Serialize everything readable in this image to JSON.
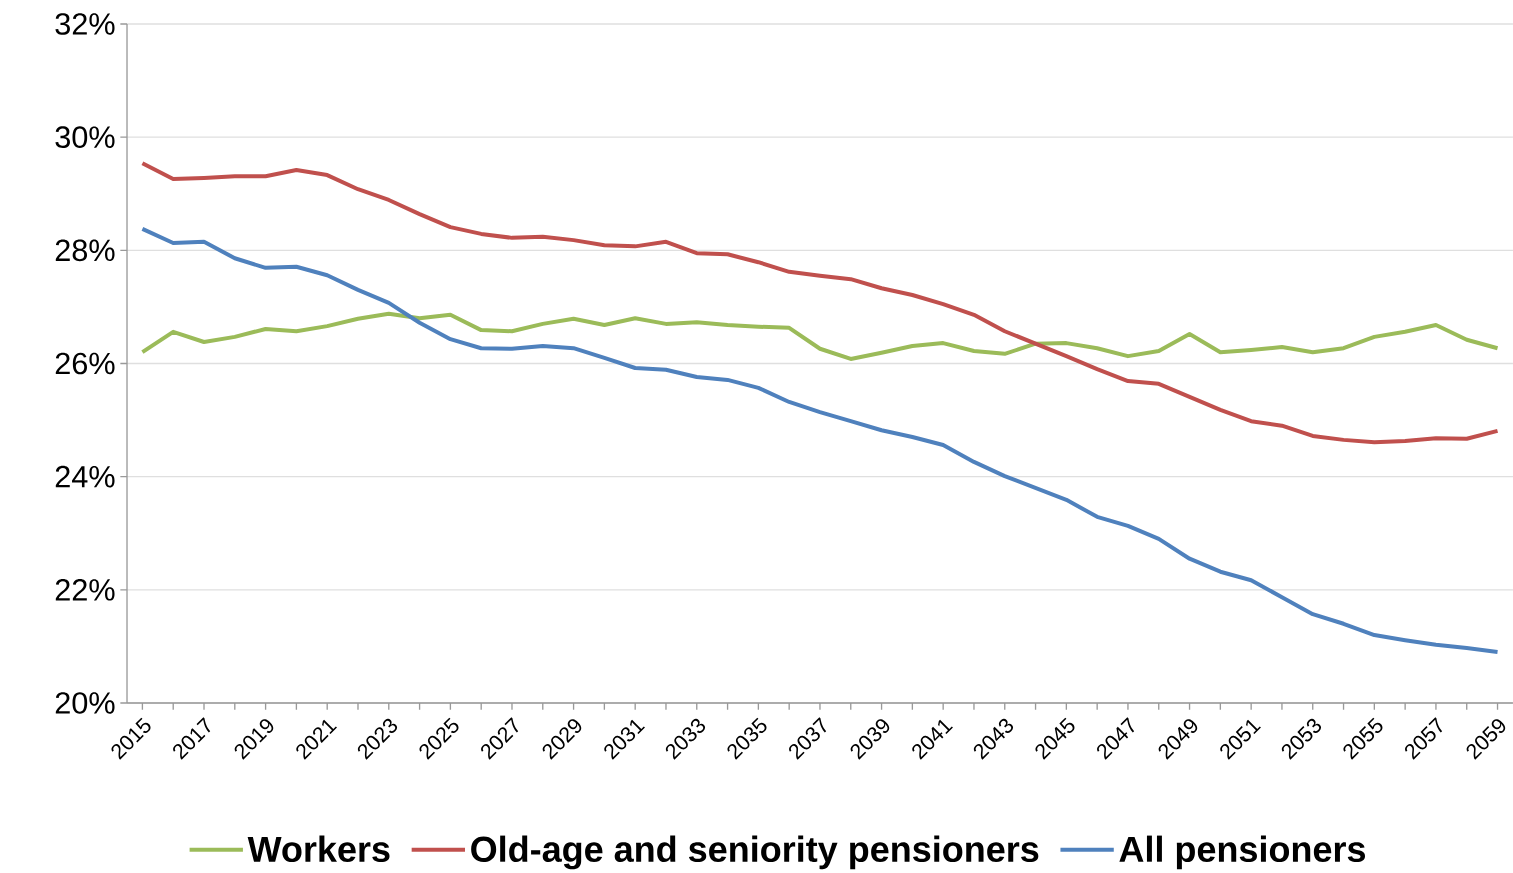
{
  "chart_data": {
    "type": "line",
    "categories": [
      "2015",
      null,
      "2017",
      null,
      "2019",
      null,
      "2021",
      null,
      "2023",
      null,
      "2025",
      null,
      "2027",
      null,
      "2029",
      null,
      "2031",
      null,
      "2033",
      null,
      "2035",
      null,
      "2037",
      null,
      "2039",
      null,
      "2041",
      null,
      "2043",
      null,
      "2045",
      null,
      "2047",
      null,
      "2049",
      null,
      "2051",
      null,
      "2053",
      null,
      "2055",
      null,
      "2057",
      null,
      "2059"
    ],
    "series": [
      {
        "name": "Workers",
        "color": "#9bbb59",
        "values": [
          26.2,
          26.56,
          26.38,
          26.47,
          26.61,
          26.57,
          26.66,
          26.79,
          26.88,
          26.8,
          26.86,
          26.59,
          26.57,
          26.7,
          26.79,
          26.68,
          26.8,
          26.7,
          26.73,
          26.68,
          26.65,
          26.63,
          26.26,
          26.08,
          26.19,
          26.31,
          26.36,
          26.22,
          26.17,
          26.35,
          26.36,
          26.27,
          26.13,
          26.22,
          26.52,
          26.2,
          26.24,
          26.29,
          26.2,
          26.27,
          26.47,
          26.56,
          26.68,
          26.42,
          26.27
        ]
      },
      {
        "name": "Old-age and seniority pensioners",
        "color": "#c0504d",
        "values": [
          29.54,
          29.26,
          29.28,
          29.31,
          29.31,
          29.42,
          29.33,
          29.08,
          28.89,
          28.64,
          28.41,
          28.29,
          28.22,
          28.24,
          28.18,
          28.09,
          28.07,
          28.15,
          27.95,
          27.93,
          27.79,
          27.62,
          27.55,
          27.49,
          27.33,
          27.21,
          27.05,
          26.86,
          26.57,
          26.35,
          26.13,
          25.9,
          25.69,
          25.64,
          25.41,
          25.18,
          24.98,
          24.9,
          24.72,
          24.65,
          24.61,
          24.63,
          24.68,
          24.67,
          24.81
        ]
      },
      {
        "name": "All pensioners",
        "color": "#4f81bd",
        "values": [
          28.38,
          28.13,
          28.15,
          27.86,
          27.69,
          27.71,
          27.56,
          27.3,
          27.07,
          26.72,
          26.43,
          26.27,
          26.26,
          26.31,
          26.27,
          26.1,
          25.92,
          25.89,
          25.76,
          25.71,
          25.57,
          25.32,
          25.14,
          24.98,
          24.82,
          24.7,
          24.56,
          24.26,
          24.01,
          23.8,
          23.59,
          23.29,
          23.13,
          22.9,
          22.55,
          22.32,
          22.17,
          21.87,
          21.57,
          21.4,
          21.2,
          21.11,
          21.03,
          20.97,
          20.9
        ]
      }
    ],
    "ylim": [
      20,
      32
    ],
    "yticks": [
      {
        "value": 20,
        "label": "20%"
      },
      {
        "value": 22,
        "label": "22%"
      },
      {
        "value": 24,
        "label": "24%"
      },
      {
        "value": 26,
        "label": "26%"
      },
      {
        "value": 28,
        "label": "28%"
      },
      {
        "value": 30,
        "label": "30%"
      },
      {
        "value": 32,
        "label": "32%"
      }
    ],
    "grid": "y",
    "legend": "bottom",
    "marker": "none",
    "line_style": "solid"
  }
}
